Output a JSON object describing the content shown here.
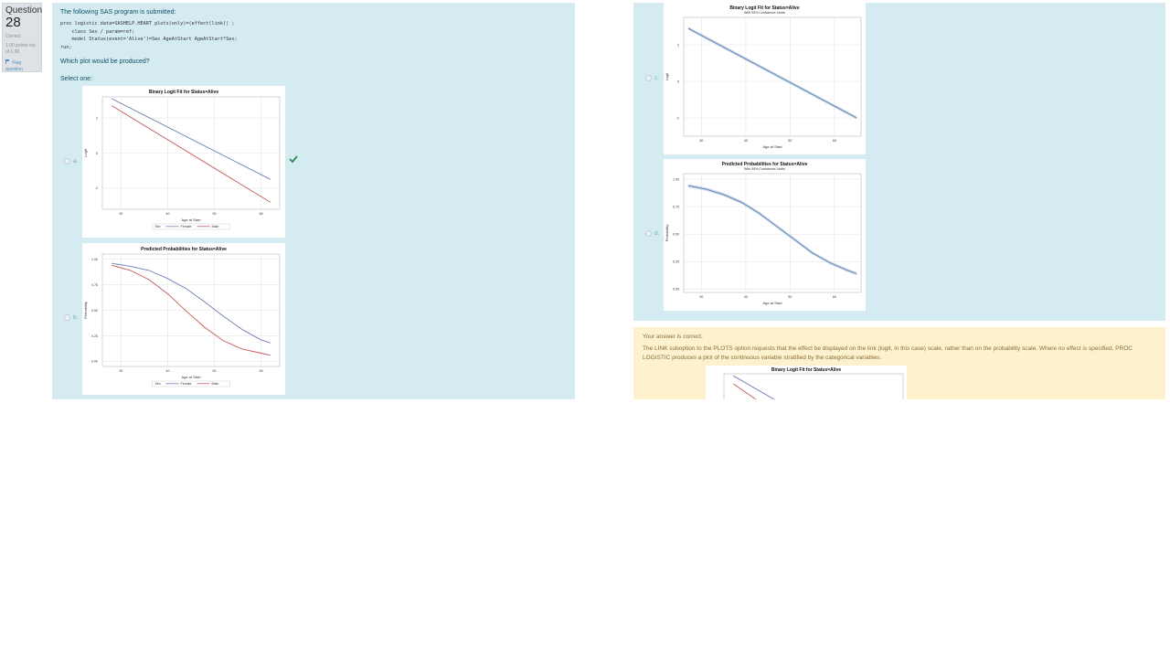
{
  "question": {
    "label": "Question",
    "number": "28",
    "state": "Correct",
    "grade": "1.00 points out of 1.00",
    "flag_label": "Flag question"
  },
  "prompt": {
    "intro": "The following SAS program is submitted:",
    "code_lines": [
      "proc logistic data=SASHELP.HEART plots(only)=(effect(link)) ;",
      "    class Sex / param=ref;",
      "    model Status(event='Alive')=Sex AgeAtStart AgeAtStart*Sex;",
      "run;"
    ],
    "question": "Which plot would be produced?",
    "select_one": "Select one:"
  },
  "options": [
    {
      "letter": "a.",
      "selected": true,
      "correct": true
    },
    {
      "letter": "b.",
      "selected": false
    },
    {
      "letter": "c.",
      "selected": false
    },
    {
      "letter": "d.",
      "selected": false
    }
  ],
  "feedback": {
    "result": "Your answer is correct.",
    "explanation": "The LINK suboption to the PLOTS option requests that the effect be displayed on the link (logit, in this case) scale, rather than on the probability scale. Where no effect is specified, PROC LOGISTIC produces a plot of the continuous variable stratified by the categorical variables."
  },
  "chart_data": [
    {
      "id": "a",
      "type": "line",
      "title": "Binary Logit Fit for Status=Alive",
      "subtitle": "",
      "xlabel": "Age at Start",
      "ylabel": "Logit",
      "xlim": [
        26,
        64
      ],
      "ylim": [
        -3.2,
        3.2
      ],
      "xticks": [
        30,
        40,
        50,
        60
      ],
      "yticks": [
        -2,
        0,
        2
      ],
      "legend_title": "Sex",
      "grid": true,
      "series": [
        {
          "name": "Female",
          "color": "#6b7fb3",
          "x": [
            28,
            62
          ],
          "y": [
            3.1,
            -1.5
          ]
        },
        {
          "name": "Male",
          "color": "#c45b57",
          "x": [
            28,
            62
          ],
          "y": [
            2.7,
            -2.8
          ]
        }
      ]
    },
    {
      "id": "b",
      "type": "line",
      "title": "Predicted Probabilities for Status=Alive",
      "subtitle": "",
      "xlabel": "Age at Start",
      "ylabel": "Probability",
      "xlim": [
        26,
        64
      ],
      "ylim": [
        -0.05,
        1.05
      ],
      "xticks": [
        30,
        40,
        50,
        60
      ],
      "yticks": [
        0,
        0.25,
        0.5,
        0.75,
        1.0
      ],
      "ytick_labels": [
        "0.00",
        "0.25",
        "0.50",
        "0.75",
        "1.00"
      ],
      "legend_title": "Sex",
      "grid": true,
      "series": [
        {
          "name": "Female",
          "color": "#6b7fb3",
          "x": [
            28,
            32,
            36,
            40,
            44,
            48,
            52,
            56,
            60,
            62
          ],
          "y": [
            0.96,
            0.93,
            0.89,
            0.81,
            0.71,
            0.58,
            0.44,
            0.31,
            0.21,
            0.18
          ]
        },
        {
          "name": "Male",
          "color": "#c45b57",
          "x": [
            28,
            32,
            36,
            40,
            44,
            48,
            52,
            56,
            60,
            62
          ],
          "y": [
            0.94,
            0.89,
            0.8,
            0.66,
            0.49,
            0.33,
            0.2,
            0.12,
            0.08,
            0.06
          ]
        }
      ]
    },
    {
      "id": "c",
      "type": "line",
      "title": "Binary Logit Fit for Status=Alive",
      "subtitle": "With 95% Confidence Limits",
      "xlabel": "Age at Start",
      "ylabel": "Logit",
      "xlim": [
        26,
        66
      ],
      "ylim": [
        -3.0,
        3.5
      ],
      "xticks": [
        30,
        40,
        50,
        60
      ],
      "yticks": [
        -2,
        0,
        2
      ],
      "grid": true,
      "band": true,
      "series": [
        {
          "name": "",
          "color": "#5b7fae",
          "x": [
            27,
            65
          ],
          "y": [
            2.9,
            -2.0
          ]
        }
      ]
    },
    {
      "id": "d",
      "type": "line",
      "title": "Predicted Probabilities for Status=Alive",
      "subtitle": "With 95% Confidence Limits",
      "xlabel": "Age at Start",
      "ylabel": "Probability",
      "xlim": [
        26,
        66
      ],
      "ylim": [
        -0.03,
        1.05
      ],
      "xticks": [
        30,
        40,
        50,
        60
      ],
      "yticks": [
        0,
        0.25,
        0.5,
        0.75,
        1.0
      ],
      "ytick_labels": [
        "0.00",
        "0.25",
        "0.50",
        "0.75",
        "1.00"
      ],
      "grid": true,
      "band": true,
      "series": [
        {
          "name": "",
          "color": "#5b7fae",
          "x": [
            27,
            31,
            35,
            39,
            43,
            47,
            51,
            55,
            59,
            63,
            65
          ],
          "y": [
            0.94,
            0.91,
            0.86,
            0.79,
            0.69,
            0.57,
            0.45,
            0.33,
            0.24,
            0.17,
            0.14
          ]
        }
      ]
    },
    {
      "id": "feedback",
      "type": "line",
      "title": "Binary Logit Fit for Status=Alive",
      "subtitle": "",
      "xlabel": "",
      "ylabel": "",
      "xlim": [
        26,
        64
      ],
      "ylim": [
        -3.2,
        3.2
      ],
      "xticks": [],
      "yticks": [],
      "grid": true,
      "partial": true,
      "series": [
        {
          "name": "Female",
          "color": "#6b7fb3",
          "x": [
            28,
            62
          ],
          "y": [
            3.1,
            -1.5
          ]
        },
        {
          "name": "Male",
          "color": "#c45b57",
          "x": [
            28,
            62
          ],
          "y": [
            2.7,
            -2.8
          ]
        }
      ]
    }
  ]
}
